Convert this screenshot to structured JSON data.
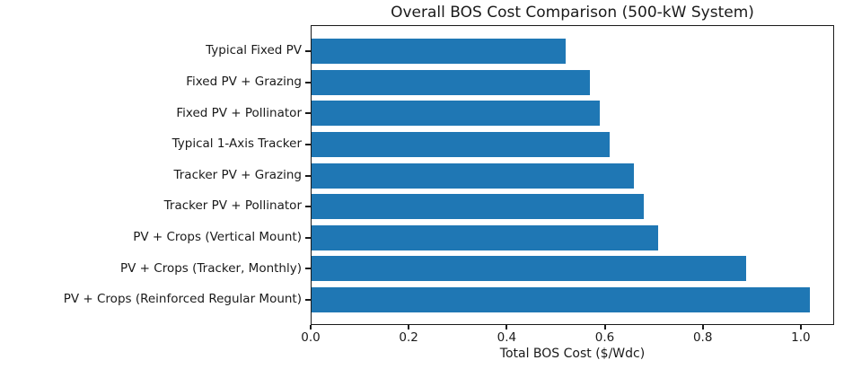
{
  "chart_data": {
    "type": "bar",
    "orientation": "horizontal",
    "title": "Overall BOS Cost Comparison (500-kW System)",
    "xlabel": "Total BOS Cost ($/Wdc)",
    "ylabel": "",
    "categories": [
      "Typical Fixed PV",
      "Fixed PV + Grazing",
      "Fixed PV + Pollinator",
      "Typical 1-Axis Tracker",
      "Tracker PV + Grazing",
      "Tracker PV + Pollinator",
      "PV + Crops (Vertical Mount)",
      "PV + Crops (Tracker, Monthly)",
      "PV + Crops (Reinforced Regular Mount)"
    ],
    "values": [
      0.52,
      0.57,
      0.59,
      0.61,
      0.66,
      0.68,
      0.71,
      0.89,
      1.02
    ],
    "xlim": [
      0,
      1.068
    ],
    "xticks": [
      0,
      0.2,
      0.4,
      0.6,
      0.8,
      1.0
    ],
    "xtick_labels": [
      "0.0",
      "0.2",
      "0.4",
      "0.6",
      "0.8",
      "1.0"
    ],
    "bar_color": "#1f77b4",
    "axis_color": "#1a1a1a",
    "grid": false,
    "legend": "none"
  }
}
